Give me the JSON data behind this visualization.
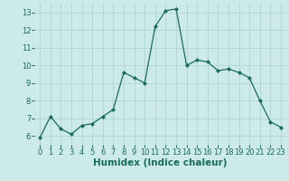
{
  "x": [
    0,
    1,
    2,
    3,
    4,
    5,
    6,
    7,
    8,
    9,
    10,
    11,
    12,
    13,
    14,
    15,
    16,
    17,
    18,
    19,
    20,
    21,
    22,
    23
  ],
  "y": [
    5.9,
    7.1,
    6.4,
    6.1,
    6.6,
    6.7,
    7.1,
    7.5,
    9.6,
    9.3,
    9.0,
    12.2,
    13.1,
    13.2,
    10.0,
    10.3,
    10.2,
    9.7,
    9.8,
    9.6,
    9.3,
    8.0,
    6.8,
    6.5
  ],
  "xlim": [
    -0.5,
    23.5
  ],
  "ylim": [
    5.5,
    13.5
  ],
  "yticks": [
    6,
    7,
    8,
    9,
    10,
    11,
    12,
    13
  ],
  "xticks": [
    0,
    1,
    2,
    3,
    4,
    5,
    6,
    7,
    8,
    9,
    10,
    11,
    12,
    13,
    14,
    15,
    16,
    17,
    18,
    19,
    20,
    21,
    22,
    23
  ],
  "xlabel": "Humidex (Indice chaleur)",
  "line_color": "#1a6b5a",
  "marker": "D",
  "marker_size": 2.0,
  "bg_color": "#cceaea",
  "grid_color": "#b0d4d4",
  "tick_label_fontsize": 6.0,
  "xlabel_fontsize": 7.5,
  "linewidth": 0.9
}
